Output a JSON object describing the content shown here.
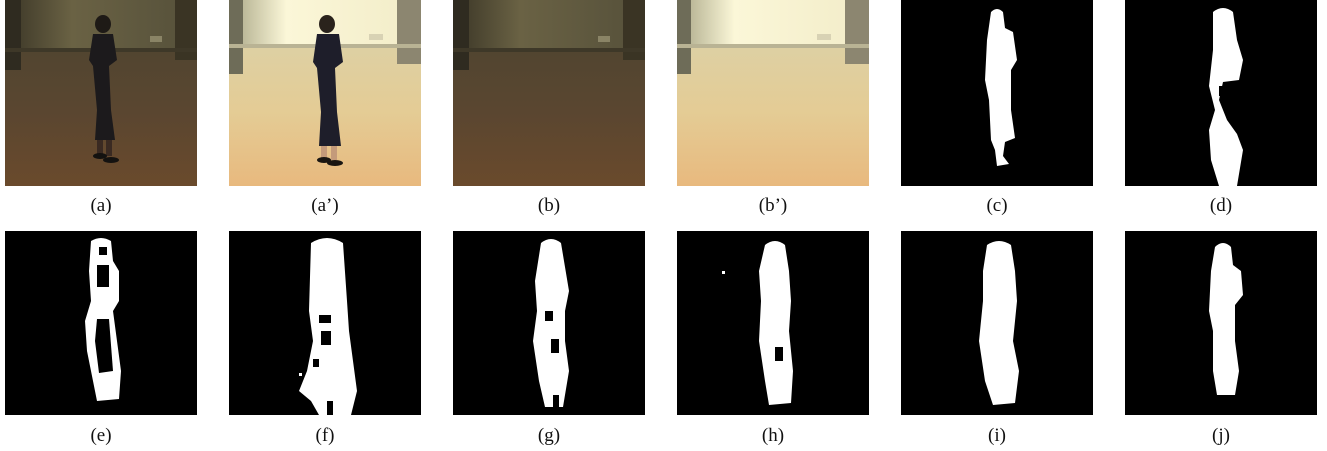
{
  "figure": {
    "panels": [
      {
        "label": "(a)",
        "kind": "photo-with-person",
        "tone": "dark"
      },
      {
        "label": "(a’)",
        "kind": "photo-with-person",
        "tone": "bright"
      },
      {
        "label": "(b)",
        "kind": "background-photo",
        "tone": "dark"
      },
      {
        "label": "(b’)",
        "kind": "background-photo",
        "tone": "bright"
      },
      {
        "label": "(c)",
        "kind": "binary-mask"
      },
      {
        "label": "(d)",
        "kind": "binary-mask"
      },
      {
        "label": "(e)",
        "kind": "binary-mask"
      },
      {
        "label": "(f)",
        "kind": "binary-mask"
      },
      {
        "label": "(g)",
        "kind": "binary-mask"
      },
      {
        "label": "(h)",
        "kind": "binary-mask"
      },
      {
        "label": "(i)",
        "kind": "binary-mask"
      },
      {
        "label": "(j)",
        "kind": "binary-mask"
      }
    ],
    "colors": {
      "mask_background": "#000000",
      "mask_foreground": "#ffffff",
      "dark_wall": "#5c5436",
      "dark_floor": "#4d3f29",
      "bright_wall": "#f2ecc6",
      "bright_floor": "#e2c58e"
    }
  }
}
